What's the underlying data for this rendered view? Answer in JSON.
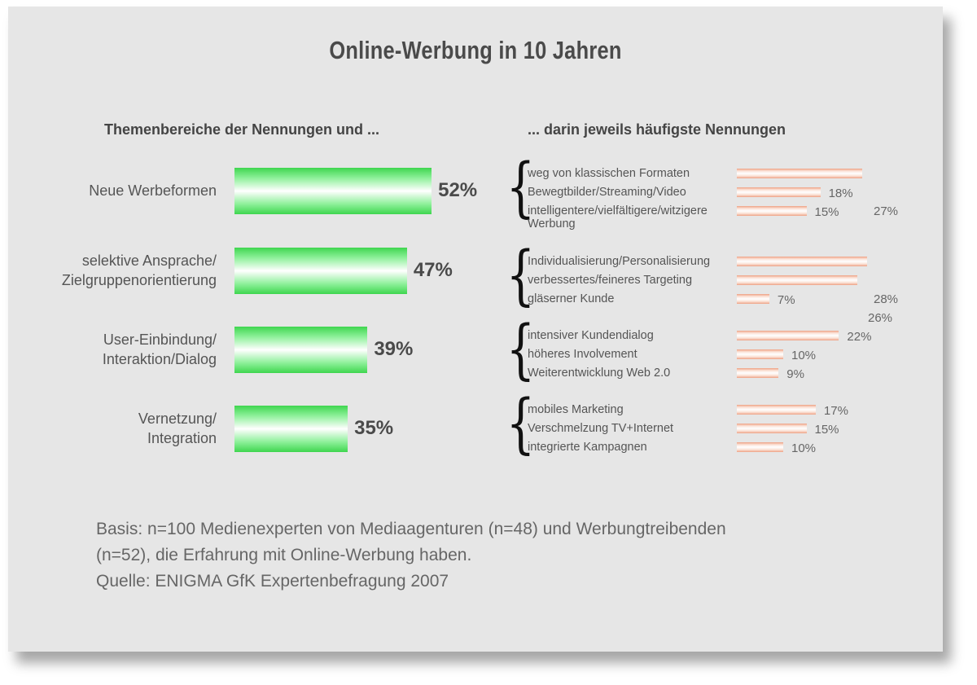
{
  "chart_data": [
    {
      "type": "bar",
      "title": "Online-Werbung in 10 Jahren",
      "subtitle": "Themenbereiche der Nennungen und ...",
      "categories": [
        "Neue Werbeformen",
        "selektive Ansprache/\nZielgruppenorientierung",
        "User-Einbindung/\nInteraktion/Dialog",
        "Vernetzung/\nIntegration"
      ],
      "values": [
        52,
        47,
        39,
        35
      ],
      "value_labels": [
        "52%",
        "47%",
        "39%",
        "35%"
      ],
      "orientation": "horizontal",
      "bar_color": "#3fd64f"
    },
    {
      "type": "bar",
      "subtitle": "... darin jeweils häufigste Nennungen",
      "orientation": "horizontal",
      "bar_color": "#eea184",
      "groups": [
        {
          "items": [
            {
              "label": "weg von klassischen Formaten",
              "value": 27,
              "value_label": "27%"
            },
            {
              "label": "Bewegtbilder/Streaming/Video",
              "value": 18,
              "value_label": "18%"
            },
            {
              "label": "intelligentere/vielfältigere/witzigere\nWerbung",
              "value": 15,
              "value_label": "15%"
            }
          ]
        },
        {
          "items": [
            {
              "label": "Individualisierung/Personalisierung",
              "value": 28,
              "value_label": "28%"
            },
            {
              "label": "verbessertes/feineres Targeting",
              "value": 26,
              "value_label": "26%"
            },
            {
              "label": "gläserner Kunde",
              "value": 7,
              "value_label": "7%"
            }
          ]
        },
        {
          "items": [
            {
              "label": "intensiver Kundendialog",
              "value": 22,
              "value_label": "22%"
            },
            {
              "label": "höheres Involvement",
              "value": 10,
              "value_label": "10%"
            },
            {
              "label": "Weiterentwicklung Web 2.0",
              "value": 9,
              "value_label": "9%"
            }
          ]
        },
        {
          "items": [
            {
              "label": "mobiles Marketing",
              "value": 17,
              "value_label": "17%"
            },
            {
              "label": "Verschmelzung TV+Internet",
              "value": 15,
              "value_label": "15%"
            },
            {
              "label": "integrierte Kampagnen",
              "value": 10,
              "value_label": "10%"
            }
          ]
        }
      ]
    }
  ],
  "footer": {
    "line1": "Basis: n=100 Medienexperten von Mediaagenturen (n=48) und Werbungtreibenden",
    "line2": "(n=52), die Erfahrung mit Online-Werbung haben.",
    "line3": "Quelle: ENIGMA GfK Expertenbefragung 2007"
  }
}
